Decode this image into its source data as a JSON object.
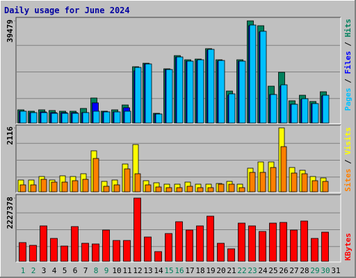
{
  "title": "Daily usage for June 2024",
  "categories": [
    "1",
    "2",
    "3",
    "4",
    "5",
    "6",
    "7",
    "8",
    "9",
    "10",
    "11",
    "12",
    "13",
    "14",
    "15",
    "16",
    "17",
    "18",
    "19",
    "20",
    "21",
    "22",
    "23",
    "24",
    "25",
    "26",
    "27",
    "28",
    "29",
    "30",
    "31"
  ],
  "highlight_categories": [
    "1",
    "2",
    "8",
    "9",
    "15",
    "16",
    "22",
    "23",
    "29",
    "30"
  ],
  "highlight_color": "#00805c",
  "label_color": "#000000",
  "chart_data": [
    {
      "type": "bar",
      "ylim": [
        0,
        39479
      ],
      "yticks": [
        39479
      ],
      "series": [
        {
          "name": "Hits",
          "color": "#00805c",
          "values": [
            5100,
            4570,
            5100,
            4840,
            4570,
            4570,
            5640,
            9670,
            4570,
            5100,
            6980,
            21760,
            23100,
            3760,
            20950,
            26050,
            24440,
            24710,
            28740,
            24440,
            12360,
            24440,
            39479,
            37600,
            14240,
            19610,
            8600,
            10740,
            8330,
            12090,
            null
          ]
        },
        {
          "name": "Files",
          "color": "#0000ff",
          "values": [
            4570,
            4030,
            4300,
            4030,
            4030,
            4030,
            4030,
            7790,
            4300,
            4300,
            5910,
            20150,
            22830,
            3490,
            20680,
            25520,
            23910,
            24170,
            28200,
            23910,
            10740,
            23910,
            37600,
            35190,
            11010,
            14240,
            7250,
            9130,
            7520,
            10480,
            null
          ]
        },
        {
          "name": "Pages",
          "color": "#00c0ff",
          "values": [
            4570,
            4030,
            4030,
            3760,
            3760,
            3760,
            4030,
            4570,
            4300,
            4300,
            4570,
            21490,
            22830,
            3490,
            20680,
            25520,
            23910,
            24440,
            28470,
            24170,
            11280,
            23910,
            37870,
            35460,
            11010,
            14770,
            7250,
            9400,
            7520,
            10740,
            null
          ]
        }
      ]
    },
    {
      "type": "bar",
      "ylim": [
        0,
        2116
      ],
      "yticks": [
        2116
      ],
      "series": [
        {
          "name": "Visits",
          "color": "#ffff00",
          "values": [
            391,
            391,
            506,
            391,
            529,
            506,
            598,
            1357,
            345,
            391,
            920,
            1564,
            368,
            299,
            253,
            253,
            322,
            253,
            253,
            276,
            345,
            253,
            782,
            989,
            989,
            2116,
            805,
            713,
            506,
            460,
            null
          ]
        },
        {
          "name": "Sites",
          "color": "#ff8000",
          "values": [
            230,
            230,
            414,
            322,
            322,
            368,
            414,
            1104,
            184,
            230,
            759,
            598,
            230,
            161,
            138,
            138,
            184,
            138,
            138,
            253,
            253,
            138,
            644,
            644,
            805,
            1495,
            621,
            598,
            368,
            345,
            null
          ]
        }
      ]
    },
    {
      "type": "bar",
      "ylim": [
        0,
        2227378
      ],
      "yticks": [
        2227378
      ],
      "series": [
        {
          "name": "KBytes",
          "color": "#ff0000",
          "values": [
            660900,
            563000,
            1248300,
            807700,
            538500,
            1223900,
            636400,
            611900,
            1101500,
            734300,
            734300,
            2227378,
            856700,
            342700,
            979100,
            1395200,
            1101500,
            1248300,
            1591000,
            636400,
            440600,
            1346200,
            1248300,
            1052500,
            1346200,
            1370700,
            1101500,
            1419700,
            807700,
            1028000,
            null
          ]
        }
      ]
    }
  ]
}
